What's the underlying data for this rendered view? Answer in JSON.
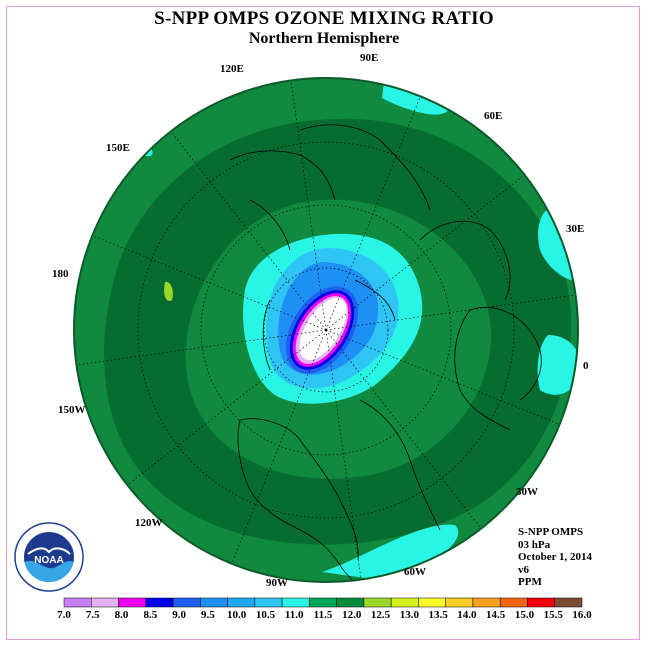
{
  "title": "S-NPP OMPS OZONE MIXING RATIO",
  "subtitle": "Northern Hemisphere",
  "longitude_labels": [
    {
      "id": "lon-90e",
      "text": "90E"
    },
    {
      "id": "lon-60e",
      "text": "60E"
    },
    {
      "id": "lon-30e",
      "text": "30E"
    },
    {
      "id": "lon-0",
      "text": "0"
    },
    {
      "id": "lon-30w",
      "text": "30W"
    },
    {
      "id": "lon-60w",
      "text": "60W"
    },
    {
      "id": "lon-90w",
      "text": "90W"
    },
    {
      "id": "lon-120w",
      "text": "120W"
    },
    {
      "id": "lon-150w",
      "text": "150W"
    },
    {
      "id": "lon-180",
      "text": "180"
    },
    {
      "id": "lon-150e",
      "text": "150E"
    },
    {
      "id": "lon-120e",
      "text": "120E"
    }
  ],
  "info": {
    "instrument": "S-NPP OMPS",
    "pressure": "03 hPa",
    "date": "October 1, 2014",
    "version": "v6",
    "units": "PPM"
  },
  "logo": {
    "text": "NOAA",
    "icon": "noaa-logo"
  },
  "legend": {
    "ticks": [
      "7.0",
      "7.5",
      "8.0",
      "8.5",
      "9.0",
      "9.5",
      "10.0",
      "10.5",
      "11.0",
      "11.5",
      "12.0",
      "12.5",
      "13.0",
      "13.5",
      "14.0",
      "14.5",
      "15.0",
      "15.5",
      "16.0"
    ],
    "colors": [
      "#c77ef0",
      "#e4b3f5",
      "#ef00ee",
      "#0000e8",
      "#1e5ff0",
      "#1e8ff5",
      "#1ea8f8",
      "#2ec5f5",
      "#28f5e6",
      "#00a85a",
      "#008a3c",
      "#9bd62b",
      "#d4f01e",
      "#fafa28",
      "#f5cd23",
      "#f5a01e",
      "#f56414",
      "#f0000a",
      "#7a4a35"
    ]
  },
  "map": {
    "colors": {
      "background": "#108a3f",
      "dark_band": "#076c2f",
      "cyan": "#28f5e6",
      "light_blue": "#2ec5f5",
      "mid_blue": "#1e8ff5",
      "blue": "#1e5ff0",
      "deep_blue": "#0000e8",
      "magenta": "#ef00ee",
      "lavender": "#e4b3f5",
      "lime": "#9bd62b"
    }
  }
}
